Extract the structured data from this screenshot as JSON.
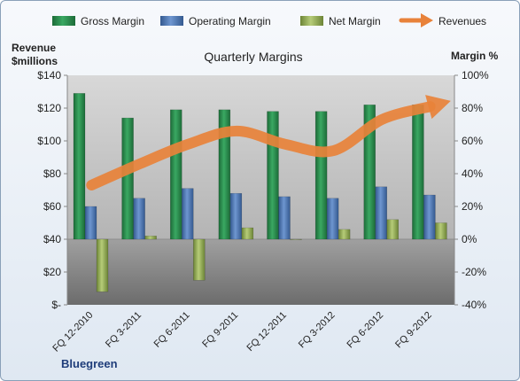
{
  "company": "Bluegreen",
  "chart_data": {
    "type": "bar",
    "title": "Quarterly Margins",
    "categories": [
      "FQ 12-2010",
      "FQ 3-2011",
      "FQ 6-2011",
      "FQ 9-2011",
      "FQ 12-2011",
      "FQ 3-2012",
      "FQ 6-2012",
      "FQ 9-2012"
    ],
    "series": [
      {
        "name": "Gross Margin",
        "axis": "right",
        "kind": "bar",
        "color": "#2e8b4e",
        "values": [
          89,
          74,
          79,
          79,
          78,
          78,
          82,
          82
        ]
      },
      {
        "name": "Operating Margin",
        "axis": "right",
        "kind": "bar",
        "color": "#4f79b8",
        "values": [
          20,
          25,
          31,
          28,
          26,
          25,
          32,
          27
        ]
      },
      {
        "name": "Net Margin",
        "axis": "right",
        "kind": "bar",
        "color": "#9bb45a",
        "values": [
          -32,
          2,
          -25,
          7,
          0,
          6,
          12,
          10
        ]
      },
      {
        "name": "Revenues",
        "axis": "left",
        "kind": "line",
        "color": "#e8823a",
        "values": [
          73,
          86,
          98,
          106,
          98,
          94,
          113,
          121
        ]
      }
    ],
    "left_axis": {
      "label_line1": "Revenue",
      "label_line2": "$millions",
      "min": 0,
      "max": 140,
      "step": 20,
      "tick_labels": [
        "$-",
        "$20",
        "$40",
        "$60",
        "$80",
        "$100",
        "$120",
        "$140"
      ]
    },
    "right_axis": {
      "label": "Margin %",
      "min": -40,
      "max": 100,
      "step": 20,
      "tick_labels": [
        "-40%",
        "-20%",
        "0%",
        "20%",
        "40%",
        "60%",
        "80%",
        "100%"
      ]
    },
    "legend": "top",
    "grid": false
  }
}
